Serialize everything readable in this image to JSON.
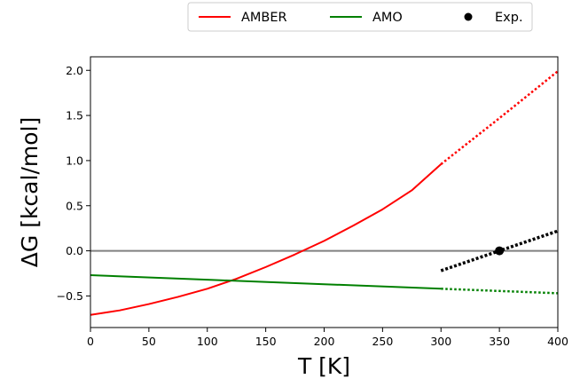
{
  "chart_data": {
    "type": "line",
    "title": "",
    "xlabel": "T [K]",
    "ylabel": "ΔG [kcal/mol]",
    "xlim": [
      0,
      400
    ],
    "ylim": [
      -0.85,
      2.15
    ],
    "xticks": [
      0,
      50,
      100,
      150,
      200,
      250,
      300,
      350,
      400
    ],
    "xtick_labels": [
      "0",
      "50",
      "100",
      "150",
      "200",
      "250",
      "300",
      "350",
      "400"
    ],
    "yticks": [
      -0.5,
      0.0,
      0.5,
      1.0,
      1.5,
      2.0
    ],
    "ytick_labels": [
      "−0.5",
      "0.0",
      "0.5",
      "1.0",
      "1.5",
      "2.0"
    ],
    "grid": false,
    "legend_position": "top-right-above",
    "reference_line": {
      "y": 0.0,
      "color": "#808080"
    },
    "series": [
      {
        "name": "AMBER",
        "color": "#ff0000",
        "style": "solid",
        "x": [
          0,
          25,
          50,
          75,
          100,
          125,
          150,
          175,
          200,
          225,
          250,
          275,
          300
        ],
        "y": [
          -0.71,
          -0.66,
          -0.59,
          -0.51,
          -0.42,
          -0.31,
          -0.18,
          -0.04,
          0.11,
          0.28,
          0.46,
          0.67,
          0.96
        ]
      },
      {
        "name": "AMBER (extrapolated)",
        "color": "#ff0000",
        "style": "dotted",
        "legend": false,
        "x": [
          300,
          350,
          400
        ],
        "y": [
          0.96,
          1.47,
          1.99
        ]
      },
      {
        "name": "AMO",
        "color": "#008000",
        "style": "solid",
        "x": [
          0,
          100,
          200,
          300
        ],
        "y": [
          -0.27,
          -0.32,
          -0.37,
          -0.42
        ]
      },
      {
        "name": "AMO (extrapolated)",
        "color": "#008000",
        "style": "dotted",
        "legend": false,
        "x": [
          300,
          400
        ],
        "y": [
          -0.42,
          -0.47
        ]
      },
      {
        "name": "Exp. fit",
        "color": "#000000",
        "style": "dotted",
        "legend": false,
        "x": [
          300,
          400
        ],
        "y": [
          -0.22,
          0.22
        ]
      },
      {
        "name": "Exp.",
        "color": "#000000",
        "style": "marker",
        "x": [
          350
        ],
        "y": [
          0.0
        ]
      }
    ],
    "legend_entries": [
      {
        "label": "AMBER",
        "color": "#ff0000",
        "kind": "line"
      },
      {
        "label": "AMO",
        "color": "#008000",
        "kind": "line"
      },
      {
        "label": "Exp.",
        "color": "#000000",
        "kind": "marker"
      }
    ]
  }
}
